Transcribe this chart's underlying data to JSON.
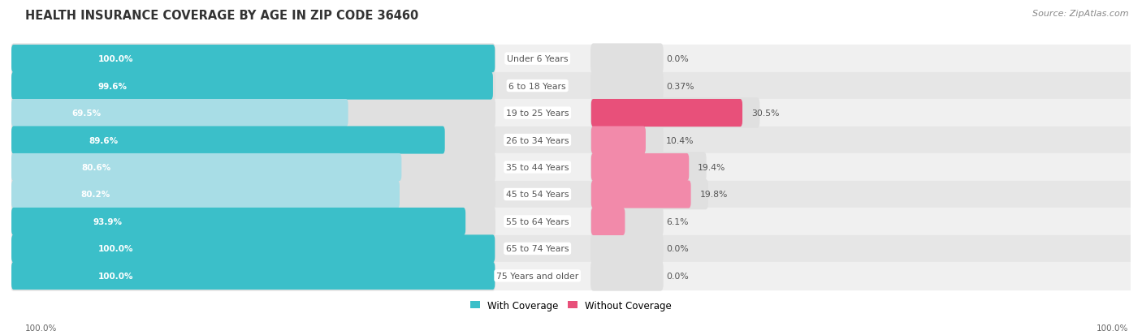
{
  "title": "HEALTH INSURANCE COVERAGE BY AGE IN ZIP CODE 36460",
  "source": "Source: ZipAtlas.com",
  "categories": [
    "Under 6 Years",
    "6 to 18 Years",
    "19 to 25 Years",
    "26 to 34 Years",
    "35 to 44 Years",
    "45 to 54 Years",
    "55 to 64 Years",
    "65 to 74 Years",
    "75 Years and older"
  ],
  "with_coverage": [
    100.0,
    99.6,
    69.5,
    89.6,
    80.6,
    80.2,
    93.9,
    100.0,
    100.0
  ],
  "without_coverage": [
    0.0,
    0.37,
    30.5,
    10.4,
    19.4,
    19.8,
    6.1,
    0.0,
    0.0
  ],
  "without_coverage_labels": [
    "0.0%",
    "0.37%",
    "30.5%",
    "10.4%",
    "19.4%",
    "19.8%",
    "6.1%",
    "0.0%",
    "0.0%"
  ],
  "with_coverage_labels": [
    "100.0%",
    "99.6%",
    "69.5%",
    "89.6%",
    "80.6%",
    "80.2%",
    "93.9%",
    "100.0%",
    "100.0%"
  ],
  "with_coverage_colors": [
    "#3bbfc9",
    "#3bbfc9",
    "#a8dde6",
    "#3bbfc9",
    "#a8dde6",
    "#a8dde6",
    "#3bbfc9",
    "#3bbfc9",
    "#3bbfc9"
  ],
  "without_coverage_colors": [
    "#f9c4d4",
    "#f9c4d4",
    "#e8507a",
    "#f28aaa",
    "#f28aaa",
    "#f28aaa",
    "#f28aaa",
    "#f9c4d4",
    "#f9c4d4"
  ],
  "row_bg_colors": [
    "#f0f0f0",
    "#e6e6e6"
  ],
  "bar_bg_color": "#e0e0e0",
  "with_label_color": "#ffffff",
  "category_label_color": "#555555",
  "title_color": "#333333",
  "source_color": "#888888",
  "legend_with": "With Coverage",
  "legend_without": "Without Coverage",
  "legend_with_color": "#3bbfc9",
  "legend_without_color": "#e8507a",
  "x_tick_label": "100.0%",
  "figsize": [
    14.06,
    4.14
  ],
  "dpi": 100
}
